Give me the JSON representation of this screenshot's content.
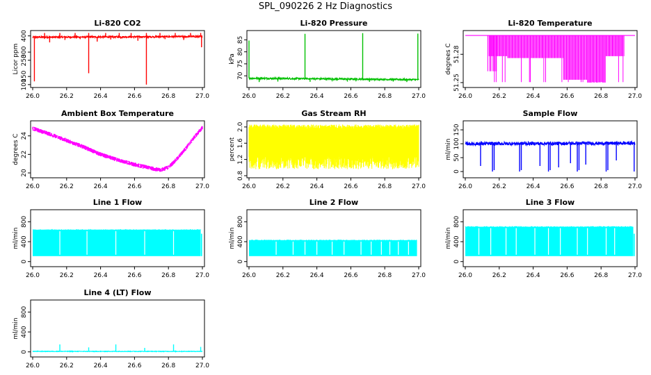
{
  "figure_title": "SPL_090226  2 Hz Diagnostics",
  "chart_data": [
    {
      "id": "co2",
      "type": "line",
      "title": "Li-820 CO2",
      "xlabel": "",
      "ylabel": "Licor ppm",
      "xlim": [
        26.0,
        27.0
      ],
      "xticks": [
        "26.0",
        "26.2",
        "26.4",
        "26.6",
        "26.8",
        "27.0"
      ],
      "ylim": [
        95,
        420
      ],
      "yticks": [
        "100",
        "150",
        "250",
        "300",
        "400"
      ],
      "color": "#ff0000",
      "pattern": "spiky",
      "base": [
        392,
        396
      ],
      "noise": 5,
      "spikes": [
        [
          26.01,
          120
        ],
        [
          26.07,
          418
        ],
        [
          26.1,
          360
        ],
        [
          26.16,
          418
        ],
        [
          26.19,
          375
        ],
        [
          26.25,
          418
        ],
        [
          26.28,
          380
        ],
        [
          26.33,
          418
        ],
        [
          26.33,
          170
        ],
        [
          26.38,
          365
        ],
        [
          26.43,
          418
        ],
        [
          26.46,
          378
        ],
        [
          26.51,
          418
        ],
        [
          26.52,
          382
        ],
        [
          26.58,
          418
        ],
        [
          26.62,
          370
        ],
        [
          26.67,
          418
        ],
        [
          26.67,
          100
        ],
        [
          26.75,
          418
        ],
        [
          26.78,
          380
        ],
        [
          26.84,
          418
        ],
        [
          26.89,
          375
        ],
        [
          26.93,
          418
        ],
        [
          26.99,
          418
        ],
        [
          26.995,
          330
        ]
      ],
      "series": [
        {
          "name": "CO2",
          "values": "~395 ppm baseline with spikes 100-418"
        }
      ]
    },
    {
      "id": "pressure",
      "type": "line",
      "title": "Li-820 Pressure",
      "xlabel": "",
      "ylabel": "kPa",
      "xlim": [
        26.0,
        27.0
      ],
      "xticks": [
        "26.0",
        "26.2",
        "26.4",
        "26.6",
        "26.8",
        "27.0"
      ],
      "ylim": [
        66,
        88
      ],
      "yticks": [
        "70",
        "75",
        "80",
        "85"
      ],
      "color": "#00c000",
      "pattern": "spiky",
      "base": [
        69.0,
        68.4
      ],
      "noise": 0.35,
      "spikes": [
        [
          26.0,
          84.7
        ],
        [
          26.33,
          87.5
        ],
        [
          26.67,
          87.8
        ],
        [
          26.995,
          87.6
        ],
        [
          26.06,
          67.4
        ],
        [
          26.17,
          67.6
        ],
        [
          26.36,
          67.5
        ],
        [
          26.49,
          67.7
        ],
        [
          26.58,
          67.6
        ],
        [
          26.63,
          67.7
        ],
        [
          26.71,
          67.5
        ],
        [
          26.85,
          67.6
        ],
        [
          26.93,
          67.4
        ]
      ],
      "series": [
        {
          "name": "Pressure",
          "values": "~68.8 kPa baseline with spikes to ~87"
        }
      ]
    },
    {
      "id": "temp",
      "type": "line",
      "title": "Li-820 Temperature",
      "xlabel": "",
      "ylabel": "degrees C",
      "xlim": [
        26.0,
        27.0
      ],
      "xticks": [
        "26.0",
        "26.2",
        "26.4",
        "26.6",
        "26.8",
        "27.0"
      ],
      "ylim": [
        51.247,
        51.303
      ],
      "yticks": [
        "51.25",
        "51.28"
      ],
      "color": "#ff00ff",
      "pattern": "quantized",
      "levels": [
        51.2995,
        51.2503
      ],
      "upper": 51.3,
      "lower": 51.2505,
      "bands": [
        [
          26.14,
          26.25,
          51.278
        ],
        [
          26.25,
          26.58,
          51.276
        ],
        [
          26.58,
          26.72,
          51.253
        ],
        [
          26.72,
          26.83,
          51.25
        ],
        [
          26.83,
          26.94,
          51.278
        ]
      ],
      "series": [
        {
          "name": "Temperature",
          "values": "quantized 51.25-51.30 C"
        }
      ]
    },
    {
      "id": "ambient",
      "type": "line",
      "title": "Ambient Box Temperature",
      "xlabel": "",
      "ylabel": "degrees C",
      "xlim": [
        26.0,
        27.0
      ],
      "xticks": [
        "26.0",
        "26.2",
        "26.4",
        "26.6",
        "26.8",
        "27.0"
      ],
      "ylim": [
        19.7,
        25.4
      ],
      "yticks": [
        "20",
        "22",
        "24"
      ],
      "color": "#ff00ff",
      "pattern": "smooth",
      "noise": 0.45,
      "curve": [
        [
          26.0,
          24.8
        ],
        [
          26.1,
          24.2
        ],
        [
          26.2,
          23.5
        ],
        [
          26.3,
          22.8
        ],
        [
          26.4,
          22.0
        ],
        [
          26.5,
          21.4
        ],
        [
          26.6,
          20.9
        ],
        [
          26.7,
          20.5
        ],
        [
          26.75,
          20.3
        ],
        [
          26.8,
          20.6
        ],
        [
          26.85,
          21.5
        ],
        [
          26.9,
          22.6
        ],
        [
          26.95,
          23.8
        ],
        [
          27.0,
          24.9
        ]
      ],
      "series": [
        {
          "name": "Ambient",
          "values": "24.8 falling to ~20.3 at 26.75, rising to ~25"
        }
      ]
    },
    {
      "id": "rh",
      "type": "line",
      "title": "Gas Stream RH",
      "xlabel": "",
      "ylabel": "percent",
      "xlim": [
        26.0,
        27.0
      ],
      "xticks": [
        "26.0",
        "26.2",
        "26.4",
        "26.6",
        "26.8",
        "27.0"
      ],
      "ylim": [
        0.8,
        2.1
      ],
      "yticks": [
        "0.8",
        "1.2",
        "1.6",
        "2.0"
      ],
      "color": "#ffff00",
      "pattern": "dense",
      "lo": 0.96,
      "hi": 2.06,
      "core": [
        1.3,
        1.95
      ],
      "series": [
        {
          "name": "RH",
          "values": "dense band 0.9-2.1 %"
        }
      ]
    },
    {
      "id": "sample",
      "type": "line",
      "title": "Sample Flow",
      "xlabel": "",
      "ylabel": "ml/min",
      "xlim": [
        26.0,
        27.0
      ],
      "xticks": [
        "26.0",
        "26.2",
        "26.4",
        "26.6",
        "26.8",
        "27.0"
      ],
      "ylim": [
        -15,
        175
      ],
      "yticks": [
        "0",
        "50",
        "100",
        "150"
      ],
      "color": "#0000ff",
      "pattern": "spiky",
      "base": [
        100,
        102
      ],
      "noise": 6,
      "spikes": [
        [
          26.01,
          95
        ],
        [
          26.09,
          20
        ],
        [
          26.16,
          0
        ],
        [
          26.17,
          5
        ],
        [
          26.32,
          0
        ],
        [
          26.33,
          5
        ],
        [
          26.44,
          20
        ],
        [
          26.49,
          0
        ],
        [
          26.5,
          5
        ],
        [
          26.55,
          15
        ],
        [
          26.62,
          30
        ],
        [
          26.66,
          0
        ],
        [
          26.67,
          5
        ],
        [
          26.71,
          25
        ],
        [
          26.83,
          0
        ],
        [
          26.84,
          5
        ],
        [
          26.89,
          40
        ],
        [
          26.995,
          0
        ]
      ],
      "series": [
        {
          "name": "Sample Flow",
          "values": "~100 ml/min with drops to 0"
        }
      ]
    },
    {
      "id": "line1",
      "type": "line",
      "title": "Line 1 Flow",
      "xlabel": "",
      "ylabel": "ml/min",
      "xlim": [
        26.0,
        27.0
      ],
      "xticks": [
        "26.0",
        "26.2",
        "26.4",
        "26.6",
        "26.8",
        "27.0"
      ],
      "ylim": [
        -60,
        1000
      ],
      "yticks": [
        "0",
        "400",
        "800"
      ],
      "color": "#00ffff",
      "pattern": "blocks",
      "lo": 110,
      "hi": 640,
      "gaps": [
        26.16,
        26.32,
        26.49,
        26.66,
        26.83,
        26.99
      ],
      "tail": [
        26.995,
        27.0,
        560
      ],
      "series": [
        {
          "name": "Line 1",
          "values": "~110-640 ml/min"
        }
      ]
    },
    {
      "id": "line2",
      "type": "line",
      "title": "Line 2 Flow",
      "xlabel": "",
      "ylabel": "ml/min",
      "xlim": [
        26.0,
        27.0
      ],
      "xticks": [
        "26.0",
        "26.2",
        "26.4",
        "26.6",
        "26.8",
        "27.0"
      ],
      "ylim": [
        -60,
        1000
      ],
      "yticks": [
        "0",
        "400",
        "800"
      ],
      "color": "#00ffff",
      "pattern": "blocks",
      "lo": 110,
      "hi": 430,
      "gaps": [
        26.16,
        26.26,
        26.33,
        26.4,
        26.49,
        26.56,
        26.66,
        26.72,
        26.78,
        26.83,
        26.88,
        26.94,
        26.99
      ],
      "tail": null,
      "series": [
        {
          "name": "Line 2",
          "values": "~110-430 ml/min"
        }
      ]
    },
    {
      "id": "line3",
      "type": "line",
      "title": "Line 3 Flow",
      "xlabel": "",
      "ylabel": "ml/min",
      "xlim": [
        26.0,
        27.0
      ],
      "xticks": [
        "26.0",
        "26.2",
        "26.4",
        "26.6",
        "26.8",
        "27.0"
      ],
      "ylim": [
        -60,
        1000
      ],
      "yticks": [
        "0",
        "400",
        "800"
      ],
      "color": "#00ffff",
      "pattern": "blocks",
      "lo": 110,
      "hi": 700,
      "gaps": [
        26.08,
        26.15,
        26.24,
        26.3,
        26.41,
        26.49,
        26.56,
        26.66,
        26.72,
        26.83,
        26.88,
        26.99
      ],
      "tail": [
        26.995,
        27.0,
        560
      ],
      "series": [
        {
          "name": "Line 3",
          "values": "~110-700 ml/min"
        }
      ]
    },
    {
      "id": "line4",
      "type": "line",
      "title": "Line 4 (LT) Flow",
      "xlabel": "",
      "ylabel": "ml/min",
      "xlim": [
        26.0,
        27.0
      ],
      "xticks": [
        "26.0",
        "26.2",
        "26.4",
        "26.6",
        "26.8",
        "27.0"
      ],
      "ylim": [
        -60,
        1000
      ],
      "yticks": [
        "0",
        "400",
        "800"
      ],
      "color": "#00ffff",
      "pattern": "spiky",
      "base": [
        10,
        10
      ],
      "noise": 6,
      "spikes": [
        [
          26.16,
          150
        ],
        [
          26.33,
          90
        ],
        [
          26.49,
          150
        ],
        [
          26.66,
          80
        ],
        [
          26.83,
          150
        ],
        [
          26.99,
          100
        ]
      ],
      "series": [
        {
          "name": "Line 4",
          "values": "~10 ml/min with small spikes to ~150"
        }
      ]
    }
  ]
}
